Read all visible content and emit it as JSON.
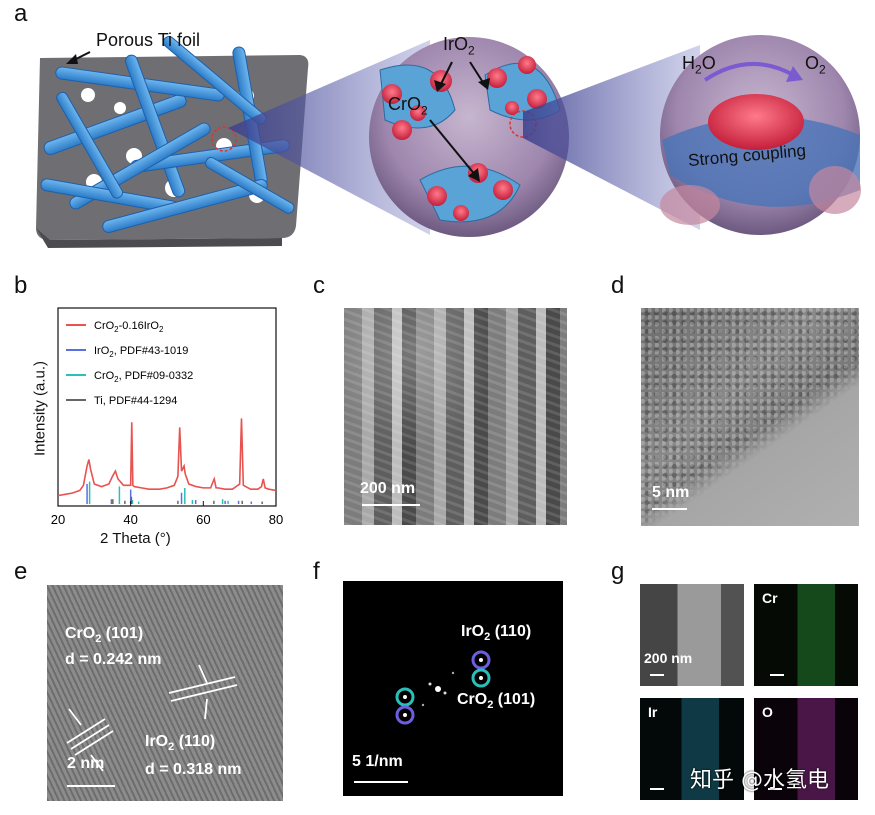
{
  "panels": {
    "a": {
      "label": "a",
      "porous_ti": "Porous Ti foil",
      "iro2": "IrO",
      "iro2_sub": "2",
      "cro2": "CrO",
      "cro2_sub": "2",
      "h2o_h": "H",
      "h2o_sub": "2",
      "h2o_o": "O",
      "o2": "O",
      "o2_sub": "2",
      "coupling": "Strong coupling"
    },
    "b": {
      "label": "b"
    },
    "c": {
      "label": "c",
      "scale": "200 nm"
    },
    "d": {
      "label": "d",
      "scale": "5 nm"
    },
    "e": {
      "label": "e",
      "cro2_plane": "CrO",
      "cro2_plane_sub": "2",
      "cro2_plane_hkl": " (101)",
      "cro2_d": "d = 0.242 nm",
      "iro2_plane": "IrO",
      "iro2_plane_sub": "2",
      "iro2_plane_hkl": " (110)",
      "iro2_d": "d = 0.318 nm",
      "scale": "2 nm"
    },
    "f": {
      "label": "f",
      "iro2": "IrO",
      "iro2_sub": "2",
      "iro2_hkl": " (110)",
      "cro2": "CrO",
      "cro2_sub": "2",
      "cro2_hkl": " (101)",
      "scale": "5 1/nm"
    },
    "g": {
      "label": "g",
      "scale": "200 nm",
      "cr": "Cr",
      "ir": "Ir",
      "o": "O",
      "watermark": "知乎 @水氢电"
    }
  },
  "chart_data": {
    "type": "line",
    "xlabel": "2 Theta (°)",
    "ylabel": "Intensity (a.u.)",
    "xlim": [
      20,
      80
    ],
    "xticks": [
      20,
      40,
      60,
      80
    ],
    "legend": [
      {
        "name": "CrO2-0.16IrO2",
        "color": "#e8524f"
      },
      {
        "name": "IrO2, PDF#43-1019",
        "color": "#5a6fe0"
      },
      {
        "name": "CrO2, PDF#09-0332",
        "color": "#2bbfb9"
      },
      {
        "name": "Ti, PDF#44-1294",
        "color": "#666666"
      }
    ],
    "legend_text": {
      "s1a": "CrO",
      "s1b": "2",
      "s1c": "-0.16IrO",
      "s1d": "2",
      "s2a": "IrO",
      "s2b": "2",
      "s2c": ", PDF#43-1019",
      "s3a": "CrO",
      "s3b": "2",
      "s3c": ", PDF#09-0332",
      "s4a": "Ti, PDF#44-1294"
    },
    "series": [
      {
        "name": "CrO2-0.16IrO2",
        "x": [
          20,
          22,
          24,
          26,
          27,
          28,
          28.5,
          29,
          30,
          32,
          34,
          35,
          35.8,
          36.5,
          38,
          39,
          40,
          40.3,
          40.6,
          41,
          43,
          45,
          48,
          50,
          52,
          53,
          53.5,
          54,
          54.7,
          55,
          56,
          57,
          58,
          60,
          62,
          63,
          63.5,
          64,
          66,
          68,
          69,
          70,
          70.5,
          71,
          73,
          75,
          76,
          76.5,
          77,
          78,
          80
        ],
        "y": [
          0.05,
          0.06,
          0.07,
          0.09,
          0.13,
          0.28,
          0.33,
          0.25,
          0.14,
          0.12,
          0.14,
          0.2,
          0.24,
          0.18,
          0.13,
          0.13,
          0.13,
          0.62,
          0.13,
          0.12,
          0.11,
          0.1,
          0.1,
          0.11,
          0.13,
          0.2,
          0.58,
          0.24,
          0.28,
          0.22,
          0.14,
          0.13,
          0.12,
          0.11,
          0.11,
          0.18,
          0.11,
          0.11,
          0.1,
          0.1,
          0.12,
          0.14,
          0.65,
          0.13,
          0.1,
          0.1,
          0.12,
          0.18,
          0.11,
          0.1,
          0.09
        ]
      },
      {
        "name": "IrO2, PDF#43-1019",
        "sticks": [
          [
            28.0,
            0.25
          ],
          [
            34.7,
            0.06
          ],
          [
            40.0,
            0.18
          ],
          [
            54.0,
            0.14
          ],
          [
            57.9,
            0.05
          ],
          [
            66.0,
            0.04
          ],
          [
            69.7,
            0.04
          ],
          [
            73.2,
            0.03
          ]
        ]
      },
      {
        "name": "CrO2, PDF#09-0332",
        "sticks": [
          [
            28.7,
            0.28
          ],
          [
            36.9,
            0.22
          ],
          [
            40.5,
            0.05
          ],
          [
            42.2,
            0.03
          ],
          [
            54.9,
            0.2
          ],
          [
            57.0,
            0.05
          ],
          [
            65.3,
            0.06
          ],
          [
            66.8,
            0.04
          ]
        ]
      },
      {
        "name": "Ti, PDF#44-1294",
        "sticks": [
          [
            35.1,
            0.06
          ],
          [
            38.4,
            0.04
          ],
          [
            40.2,
            0.09
          ],
          [
            53.0,
            0.04
          ],
          [
            62.9,
            0.04
          ],
          [
            70.7,
            0.04
          ],
          [
            76.2,
            0.03
          ]
        ]
      }
    ]
  }
}
